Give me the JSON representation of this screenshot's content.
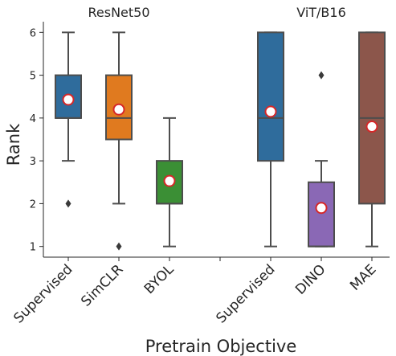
{
  "chart_data": {
    "type": "box",
    "xlabel": "Pretrain Objective",
    "ylabel": "Rank",
    "ylim": [
      0.75,
      6.25
    ],
    "yticks": [
      "1",
      "2",
      "3",
      "4",
      "5",
      "6"
    ],
    "grid": false,
    "legend": "none",
    "groups": [
      {
        "label": "ResNet50",
        "categories": [
          "Supervised",
          "SimCLR",
          "BYOL"
        ]
      },
      {
        "label": "ViT/B16",
        "categories": [
          "Supervised",
          "DINO",
          "MAE"
        ]
      }
    ],
    "series": [
      {
        "category": "Supervised",
        "group": "ResNet50",
        "color": "#2f6c9c",
        "whisker_low": 3,
        "q1": 4,
        "median": 4,
        "q3": 5,
        "whisker_high": 6,
        "mean": 4.43,
        "outliers": [
          2
        ]
      },
      {
        "category": "SimCLR",
        "group": "ResNet50",
        "color": "#e07a1f",
        "whisker_low": 2,
        "q1": 3.5,
        "median": 4,
        "q3": 5,
        "whisker_high": 6,
        "mean": 4.2,
        "outliers": [
          1
        ]
      },
      {
        "category": "BYOL",
        "group": "ResNet50",
        "color": "#3b8f35",
        "whisker_low": 1,
        "q1": 2,
        "median": 2,
        "q3": 3,
        "whisker_high": 4,
        "mean": 2.53,
        "outliers": []
      },
      {
        "category": "Supervised",
        "group": "ViT/B16",
        "color": "#2f6c9c",
        "whisker_low": 1,
        "q1": 3,
        "median": 4,
        "q3": 6,
        "whisker_high": 6,
        "mean": 4.15,
        "outliers": []
      },
      {
        "category": "DINO",
        "group": "ViT/B16",
        "color": "#8a68b5",
        "whisker_low": 1,
        "q1": 1,
        "median": 1,
        "q3": 2.5,
        "whisker_high": 3,
        "mean": 1.9,
        "outliers": [
          5
        ]
      },
      {
        "category": "MAE",
        "group": "ViT/B16",
        "color": "#8c564b",
        "whisker_low": 1,
        "q1": 2,
        "median": 4,
        "q3": 6,
        "whisker_high": 6,
        "mean": 3.8,
        "outliers": []
      }
    ],
    "colors": {
      "mean_marker_fill": "#ffffff",
      "mean_marker_edge": "#d62728",
      "line": "#4d4d4d"
    }
  }
}
